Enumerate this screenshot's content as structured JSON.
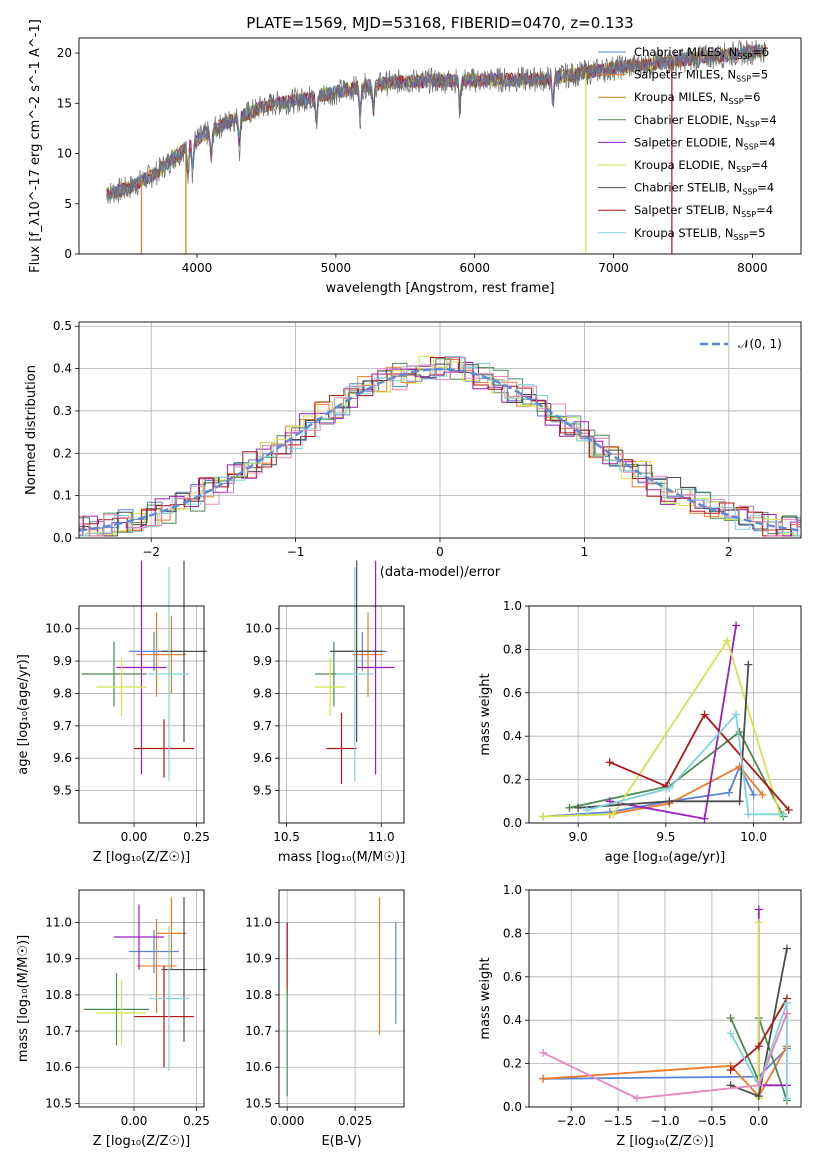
{
  "title": "PLATE=1569, MJD=53168, FIBERID=0470, z=0.133",
  "models": [
    {
      "name": "Chabrier MILES",
      "nssp": "6",
      "color": "#5b84d6"
    },
    {
      "name": "Salpeter MILES",
      "nssp": "5",
      "color": "#ec7b2a"
    },
    {
      "name": "Kroupa MILES",
      "nssp": "6",
      "color": "#b8860b"
    },
    {
      "name": "Chabrier ELODIE",
      "nssp": "4",
      "color": "#4d8a52"
    },
    {
      "name": "Salpeter ELODIE",
      "nssp": "4",
      "color": "#9b1fc1"
    },
    {
      "name": "Kroupa ELODIE",
      "nssp": "4",
      "color": "#d4e34e"
    },
    {
      "name": "Chabrier STELIB",
      "nssp": "4",
      "color": "#4d4d4d"
    },
    {
      "name": "Salpeter STELIB",
      "nssp": "4",
      "color": "#b01818"
    },
    {
      "name": "Kroupa STELIB",
      "nssp": "5",
      "color": "#7fd4dd"
    }
  ],
  "chart_data": [
    {
      "type": "line",
      "id": "spectrum",
      "xlabel": "wavelength [Angstrom, rest frame]",
      "ylabel": "Flux [f_λ10^-17 erg cm^-2 s^-1 A^-1]",
      "xlim": [
        3150,
        8350
      ],
      "ylim": [
        0,
        21.5
      ],
      "xticks": [
        4000,
        5000,
        6000,
        7000,
        8000
      ],
      "yticks": [
        0,
        5,
        10,
        15,
        20
      ],
      "continuum": [
        [
          3350,
          6.0
        ],
        [
          3500,
          6.5
        ],
        [
          3700,
          8.0
        ],
        [
          3950,
          11.0
        ],
        [
          4200,
          13.0
        ],
        [
          4500,
          14.8
        ],
        [
          4800,
          15.5
        ],
        [
          5200,
          16.7
        ],
        [
          5500,
          17.2
        ],
        [
          6000,
          17.3
        ],
        [
          6500,
          17.4
        ],
        [
          7000,
          18.5
        ],
        [
          7500,
          19.3
        ],
        [
          8100,
          20.3
        ]
      ],
      "absorption_lines": [
        3934,
        3969,
        4102,
        4305,
        4861,
        5175,
        5270,
        5893,
        6563
      ],
      "model_gaps": [
        {
          "x": 3600,
          "model": 1
        },
        {
          "x": 3920,
          "model": 2
        },
        {
          "x": 6800,
          "model": 5
        },
        {
          "x": 7420,
          "model": 7
        }
      ],
      "grid": false,
      "legend": "top-right"
    },
    {
      "type": "bar",
      "id": "residuals",
      "xlabel": "(data-model)/error",
      "ylabel": "Normed distribution",
      "xlim": [
        -2.5,
        2.5
      ],
      "ylim": [
        0,
        0.51
      ],
      "xticks": [
        -2,
        -1,
        0,
        1,
        2
      ],
      "xtick_labels": [
        "−2",
        "−1",
        "0",
        "1",
        "2"
      ],
      "yticks": [
        0,
        0.1,
        0.2,
        0.3,
        0.4,
        0.5
      ],
      "bin_width": 0.1,
      "reference": {
        "name": "𝒩(0, 1)",
        "color": "#5b8bd6"
      },
      "grid": true,
      "legend": "top-right"
    },
    {
      "type": "scatter",
      "id": "age-vs-Z",
      "xlabel": "Z [log₁₀(Z/Z☉)]",
      "ylabel": "age  [log₁₀(age/yr)]",
      "xlim": [
        -0.22,
        0.28
      ],
      "ylim": [
        9.4,
        10.07
      ],
      "xticks": [
        0,
        0.25
      ],
      "xtick_labels": [
        "0.00",
        "0.25"
      ],
      "yticks": [
        9.5,
        9.6,
        9.7,
        9.8,
        9.9,
        10.0
      ],
      "points": [
        {
          "x": 0.08,
          "y": 9.93,
          "xerr": 0.1,
          "yerr": 0.06,
          "model": 0
        },
        {
          "x": 0.09,
          "y": 9.92,
          "xerr": 0.08,
          "yerr": 0.13,
          "model": 1
        },
        {
          "x": 0.15,
          "y": 9.92,
          "xerr": 0.06,
          "yerr": 0.12,
          "model": 1
        },
        {
          "x": -0.08,
          "y": 9.86,
          "xerr": 0.13,
          "yerr": 0.1,
          "model": 3
        },
        {
          "x": 0.03,
          "y": 9.88,
          "xerr": 0.1,
          "yerr": 0.33,
          "model": 4
        },
        {
          "x": -0.05,
          "y": 9.82,
          "xerr": 0.1,
          "yerr": 0.09,
          "model": 5
        },
        {
          "x": 0.2,
          "y": 9.93,
          "xerr": 0.09,
          "yerr": 0.28,
          "model": 6
        },
        {
          "x": 0.12,
          "y": 9.63,
          "xerr": 0.12,
          "yerr": 0.09,
          "model": 7
        },
        {
          "x": 0.14,
          "y": 9.86,
          "xerr": 0.08,
          "yerr": 0.33,
          "model": 8
        }
      ]
    },
    {
      "type": "scatter",
      "id": "age-vs-mass",
      "xlabel": "mass [log₁₀(M/M☉)]",
      "ylabel": "",
      "xlim": [
        10.46,
        11.12
      ],
      "ylim": [
        9.4,
        10.07
      ],
      "xticks": [
        10.5,
        11.0
      ],
      "xtick_labels": [
        "10.5",
        "11.0"
      ],
      "yticks": [
        9.5,
        9.6,
        9.7,
        9.8,
        9.9,
        10.0
      ],
      "points": [
        {
          "x": 10.9,
          "y": 9.93,
          "xerr": 0.13,
          "yerr": 0.06,
          "model": 0
        },
        {
          "x": 10.93,
          "y": 9.92,
          "xerr": 0.08,
          "yerr": 0.13,
          "model": 1
        },
        {
          "x": 10.75,
          "y": 9.86,
          "xerr": 0.1,
          "yerr": 0.1,
          "model": 3
        },
        {
          "x": 10.97,
          "y": 9.88,
          "xerr": 0.1,
          "yerr": 0.33,
          "model": 4
        },
        {
          "x": 10.73,
          "y": 9.82,
          "xerr": 0.08,
          "yerr": 0.09,
          "model": 5
        },
        {
          "x": 10.87,
          "y": 9.93,
          "xerr": 0.14,
          "yerr": 0.28,
          "model": 6
        },
        {
          "x": 10.79,
          "y": 9.63,
          "xerr": 0.08,
          "yerr": 0.11,
          "model": 7
        },
        {
          "x": 10.86,
          "y": 9.86,
          "xerr": 0.1,
          "yerr": 0.33,
          "model": 8
        }
      ]
    },
    {
      "type": "line",
      "id": "weight-vs-age",
      "xlabel": "age  [log₁₀(age/yr)]",
      "ylabel": "mass weight",
      "xlim": [
        8.72,
        10.27
      ],
      "ylim": [
        0,
        1
      ],
      "xticks": [
        9.0,
        9.5,
        10.0
      ],
      "xtick_labels": [
        "9.0",
        "9.5",
        "10.0"
      ],
      "yticks": [
        0,
        0.2,
        0.4,
        0.6,
        0.8,
        1.0
      ],
      "series": [
        {
          "model": 0,
          "x": [
            8.8,
            9.18,
            9.52,
            9.86,
            9.92,
            10.0
          ],
          "y": [
            0.03,
            0.05,
            0.1,
            0.14,
            0.26,
            0.13
          ]
        },
        {
          "model": 1,
          "x": [
            9.18,
            9.52,
            9.92,
            10.05
          ],
          "y": [
            0.04,
            0.09,
            0.26,
            0.13
          ]
        },
        {
          "model": 3,
          "x": [
            8.95,
            9.52,
            9.92,
            10.17
          ],
          "y": [
            0.07,
            0.17,
            0.42,
            0.03
          ]
        },
        {
          "model": 4,
          "x": [
            9.18,
            9.72,
            9.9
          ],
          "y": [
            0.1,
            0.02,
            0.91
          ]
        },
        {
          "model": 5,
          "x": [
            8.8,
            9.2,
            9.85,
            10.15
          ],
          "y": [
            0.03,
            0.04,
            0.84,
            0.04
          ]
        },
        {
          "model": 6,
          "x": [
            9.0,
            9.52,
            9.92,
            9.97
          ],
          "y": [
            0.07,
            0.1,
            0.1,
            0.73
          ]
        },
        {
          "model": 7,
          "x": [
            9.18,
            9.5,
            9.72,
            10.2
          ],
          "y": [
            0.28,
            0.17,
            0.5,
            0.06
          ]
        },
        {
          "model": 8,
          "x": [
            9.05,
            9.52,
            9.9,
            9.97,
            10.17
          ],
          "y": [
            0.06,
            0.16,
            0.5,
            0.04,
            0.04
          ]
        }
      ],
      "grid": true
    },
    {
      "type": "scatter",
      "id": "mass-vs-Z",
      "xlabel": "Z [log₁₀(Z/Z☉)]",
      "ylabel": "mass [log₁₀(M/M☉)]",
      "xlim": [
        -0.22,
        0.28
      ],
      "ylim": [
        10.49,
        11.09
      ],
      "xticks": [
        0,
        0.25
      ],
      "xtick_labels": [
        "0.00",
        "0.25"
      ],
      "yticks": [
        10.5,
        10.6,
        10.7,
        10.8,
        10.9,
        11.0
      ],
      "points": [
        {
          "x": 0.08,
          "y": 10.92,
          "xerr": 0.1,
          "yerr": 0.06,
          "model": 0
        },
        {
          "x": 0.09,
          "y": 10.88,
          "xerr": 0.08,
          "yerr": 0.13,
          "model": 1
        },
        {
          "x": 0.15,
          "y": 10.97,
          "xerr": 0.06,
          "yerr": 0.1,
          "model": 1
        },
        {
          "x": -0.07,
          "y": 10.76,
          "xerr": 0.13,
          "yerr": 0.1,
          "model": 3
        },
        {
          "x": 0.02,
          "y": 10.96,
          "xerr": 0.1,
          "yerr": 0.09,
          "model": 4
        },
        {
          "x": -0.05,
          "y": 10.75,
          "xerr": 0.1,
          "yerr": 0.09,
          "model": 5
        },
        {
          "x": 0.2,
          "y": 10.87,
          "xerr": 0.09,
          "yerr": 0.2,
          "model": 6
        },
        {
          "x": 0.12,
          "y": 10.74,
          "xerr": 0.12,
          "yerr": 0.14,
          "model": 7
        },
        {
          "x": 0.14,
          "y": 10.79,
          "xerr": 0.08,
          "yerr": 0.2,
          "model": 8
        }
      ]
    },
    {
      "type": "scatter",
      "id": "mass-vs-EBV",
      "xlabel": "E(B-V)",
      "ylabel": "",
      "xlim": [
        -0.003,
        0.043
      ],
      "ylim": [
        10.49,
        11.09
      ],
      "xticks": [
        0,
        0.025
      ],
      "xtick_labels": [
        "0.000",
        "0.025"
      ],
      "yticks": [
        10.5,
        10.6,
        10.7,
        10.8,
        10.9,
        11.0
      ],
      "points": [
        {
          "x": 0.04,
          "y": 10.86,
          "yerr": 0.14,
          "model": 0
        },
        {
          "x": 0.034,
          "y": 10.88,
          "yerr": 0.19,
          "model": 1
        },
        {
          "x": 0.0,
          "y": 10.95,
          "yerr": 0.05,
          "model": 4
        },
        {
          "x": 0.0,
          "y": 10.9,
          "yerr": 0.1,
          "model": 7
        },
        {
          "x": 0.0,
          "y": 10.67,
          "yerr": 0.15,
          "model": 3
        }
      ]
    },
    {
      "type": "line",
      "id": "weight-vs-Z",
      "xlabel": "Z [log₁₀(Z/Z☉)]",
      "ylabel": "mass weight",
      "xlim": [
        -2.45,
        0.45
      ],
      "ylim": [
        0,
        1
      ],
      "xticks": [
        -2.0,
        -1.5,
        -1.0,
        -0.5,
        0.0
      ],
      "xtick_labels": [
        "−2.0",
        "−1.5",
        "−1.0",
        "−0.5",
        "0.0"
      ],
      "yticks": [
        0,
        0.2,
        0.4,
        0.6,
        0.8,
        1.0
      ],
      "series": [
        {
          "model": 0,
          "x": [
            -2.3,
            0.0,
            0.3
          ],
          "y": [
            0.13,
            0.14,
            0.27
          ]
        },
        {
          "model": 1,
          "x": [
            -2.3,
            -0.3,
            0.0,
            0.3
          ],
          "y": [
            0.13,
            0.19,
            0.05,
            0.28
          ]
        },
        {
          "model": 3,
          "x": [
            -0.3,
            0.0,
            0.0,
            0.3
          ],
          "y": [
            0.41,
            0.12,
            0.41,
            0.03
          ]
        },
        {
          "model": 4,
          "x": [
            0.0,
            0.0,
            0.3
          ],
          "y": [
            0.91,
            0.1,
            0.1
          ]
        },
        {
          "model": 5,
          "x": [
            0.0,
            0.0
          ],
          "y": [
            0.85,
            0.04
          ]
        },
        {
          "model": 6,
          "x": [
            -0.3,
            0.0,
            0.3
          ],
          "y": [
            0.1,
            0.05,
            0.73
          ]
        },
        {
          "model": 7,
          "x": [
            -0.3,
            0.0,
            0.3
          ],
          "y": [
            0.17,
            0.28,
            0.5
          ]
        },
        {
          "model": 8,
          "x": [
            -0.3,
            0.0,
            0.3,
            0.3
          ],
          "y": [
            0.34,
            0.1,
            0.48,
            0.04
          ]
        },
        {
          "model": 9,
          "x": [
            -2.3,
            -1.3,
            0.0,
            0.3
          ],
          "y": [
            0.25,
            0.04,
            0.1,
            0.43
          ]
        }
      ],
      "grid": true
    }
  ],
  "extra_colors": {
    "pink": "#e887be",
    "grid": "#b0b0b0"
  }
}
